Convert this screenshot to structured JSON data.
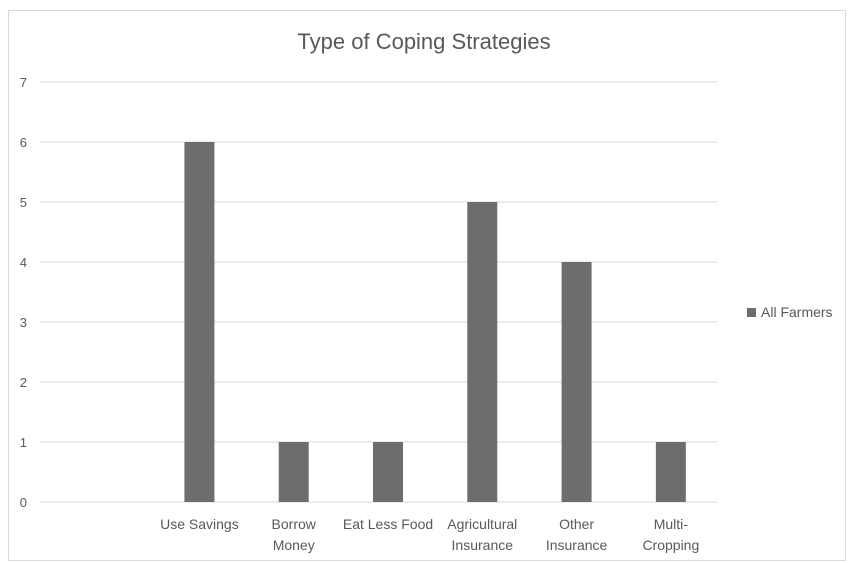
{
  "chart_data": {
    "type": "bar",
    "title": "Type of Coping Strategies",
    "xlabel": "",
    "ylabel": "",
    "categories": [
      "",
      [
        "Use Savings"
      ],
      [
        "Borrow",
        "Money"
      ],
      [
        "Eat Less Food"
      ],
      [
        "Agricultural",
        "Insurance"
      ],
      [
        "Other",
        "Insurance"
      ],
      [
        "Multi-",
        "Cropping"
      ]
    ],
    "series": [
      {
        "name": "All Farmers",
        "values": [
          null,
          6,
          1,
          1,
          5,
          4,
          1
        ],
        "color": "#6d6d6d"
      }
    ],
    "ylim": [
      0,
      7
    ],
    "yticks": [
      "0",
      "1",
      "2",
      "3",
      "4",
      "5",
      "6",
      "7"
    ],
    "grid": true,
    "legend_position": "right"
  }
}
